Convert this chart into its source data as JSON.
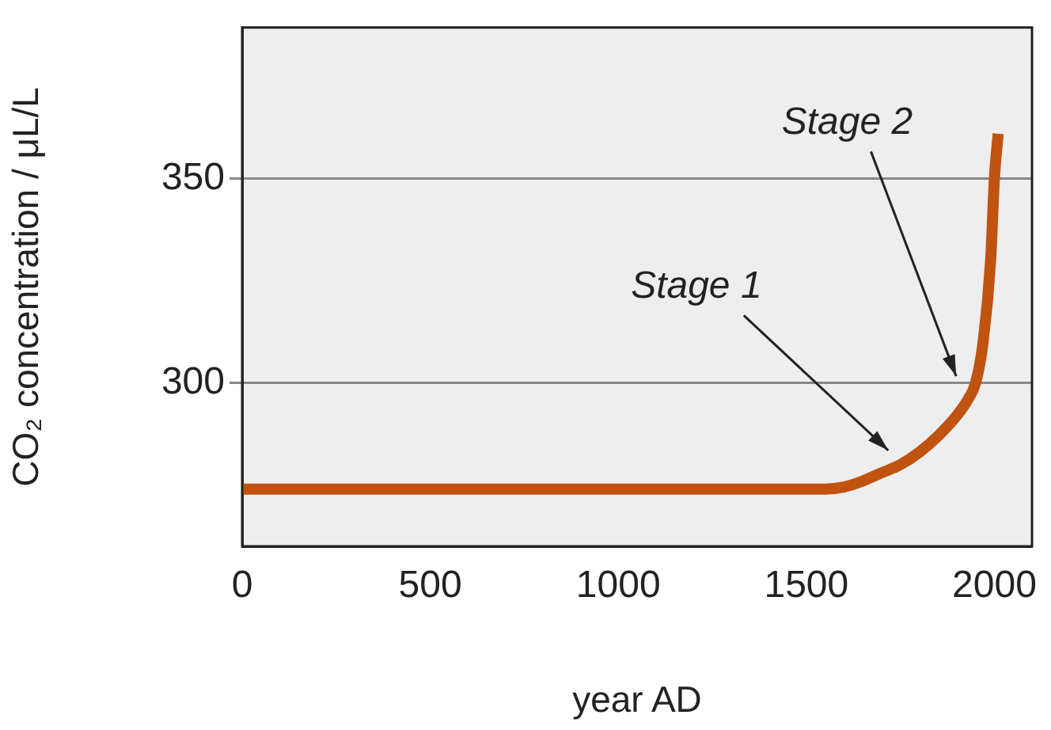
{
  "chart_data": {
    "type": "line",
    "xlabel": "year AD",
    "ylabel": "CO₂ concentration / μL/L",
    "x": [
      0,
      500,
      1000,
      1500,
      1550,
      1600,
      1650,
      1700,
      1750,
      1800,
      1850,
      1900,
      1930,
      1950,
      1970,
      1990,
      2000,
      2010
    ],
    "series": [
      {
        "color": "#c0530f",
        "values": [
          274,
          274,
          274,
          274,
          274,
          274.5,
          276,
          278,
          280,
          283,
          287,
          292,
          296,
          300,
          310,
          330,
          350,
          361
        ]
      }
    ],
    "xlim": [
      0,
      2100
    ],
    "xticks": [
      0,
      500,
      1000,
      1500,
      2000
    ],
    "ylim": [
      260,
      387
    ],
    "yticks": [
      300,
      350
    ],
    "grid": "y",
    "legend": false,
    "marker": "none",
    "line_style": "solid",
    "annotations": [
      "Stage 1",
      "Stage 2"
    ]
  }
}
